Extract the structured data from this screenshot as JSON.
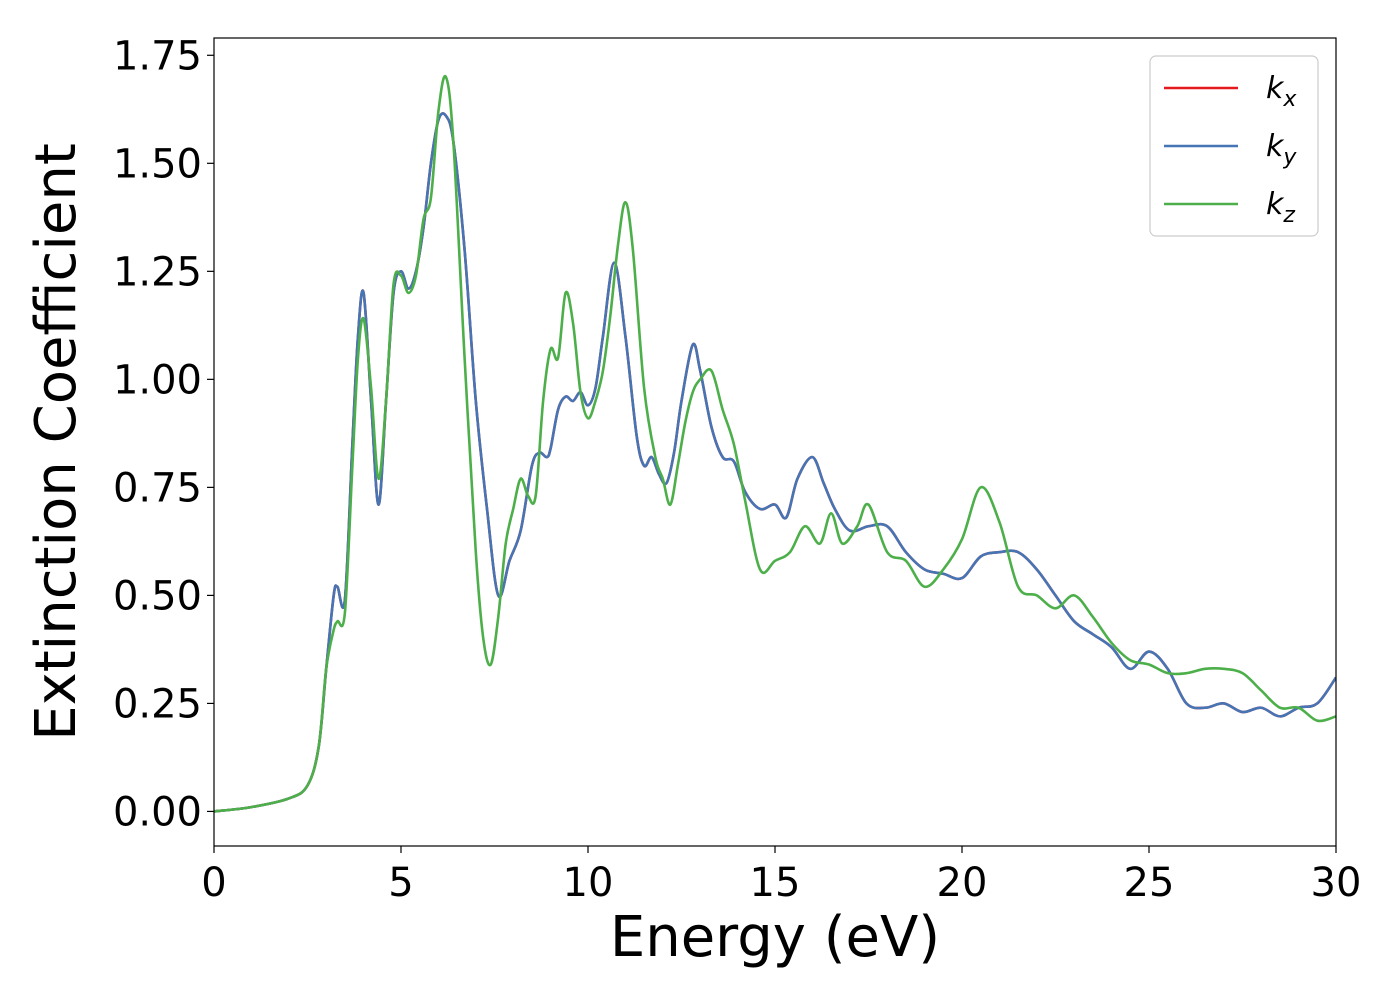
{
  "chart_data": {
    "type": "line",
    "xlabel": "Energy (eV)",
    "ylabel": "Extinction Coefficient",
    "xlim": [
      0,
      30
    ],
    "ylim": [
      -0.08,
      1.79
    ],
    "xticks": [
      0,
      5,
      10,
      15,
      20,
      25,
      30
    ],
    "xtick_labels": [
      "0",
      "5",
      "10",
      "15",
      "20",
      "25",
      "30"
    ],
    "yticks": [
      0,
      0.25,
      0.5,
      0.75,
      1.0,
      1.25,
      1.5,
      1.75
    ],
    "ytick_labels": [
      "0.00",
      "0.25",
      "0.50",
      "0.75",
      "1.00",
      "1.25",
      "1.50",
      "1.75"
    ],
    "grid": false,
    "legend_position": "top-right",
    "series": [
      {
        "name": "k",
        "subscript": "x",
        "color": "#e41a1c",
        "x": [
          0,
          1,
          2,
          2.5,
          2.8,
          3.0,
          3.2,
          3.3,
          3.5,
          3.7,
          3.85,
          4.0,
          4.2,
          4.4,
          4.6,
          4.8,
          5.0,
          5.2,
          5.4,
          5.6,
          5.8,
          6.0,
          6.2,
          6.4,
          6.7,
          7.0,
          7.3,
          7.6,
          7.9,
          8.2,
          8.5,
          8.7,
          8.9,
          9.0,
          9.2,
          9.4,
          9.6,
          9.8,
          10.0,
          10.2,
          10.4,
          10.7,
          11.0,
          11.3,
          11.5,
          11.7,
          11.9,
          12.1,
          12.3,
          12.5,
          12.8,
          13.0,
          13.3,
          13.6,
          13.9,
          14.2,
          14.6,
          15.0,
          15.3,
          15.6,
          16.0,
          16.3,
          16.6,
          17.0,
          17.5,
          18.0,
          18.5,
          19.0,
          19.5,
          20.0,
          20.5,
          21.0,
          21.5,
          22.0,
          22.5,
          23.0,
          23.5,
          24.0,
          24.5,
          25.0,
          25.5,
          26.0,
          26.5,
          27.0,
          27.5,
          28.0,
          28.5,
          29.0,
          29.5,
          30.0
        ],
        "y": [
          0.0,
          0.01,
          0.03,
          0.06,
          0.15,
          0.33,
          0.5,
          0.52,
          0.49,
          0.85,
          1.1,
          1.2,
          0.95,
          0.71,
          0.95,
          1.2,
          1.25,
          1.21,
          1.25,
          1.35,
          1.5,
          1.6,
          1.61,
          1.55,
          1.3,
          0.95,
          0.7,
          0.5,
          0.58,
          0.65,
          0.8,
          0.83,
          0.82,
          0.84,
          0.93,
          0.96,
          0.95,
          0.97,
          0.94,
          0.98,
          1.1,
          1.27,
          1.1,
          0.87,
          0.8,
          0.82,
          0.78,
          0.76,
          0.83,
          0.95,
          1.08,
          1.02,
          0.89,
          0.82,
          0.81,
          0.74,
          0.7,
          0.71,
          0.68,
          0.77,
          0.82,
          0.76,
          0.7,
          0.65,
          0.66,
          0.66,
          0.6,
          0.56,
          0.55,
          0.54,
          0.59,
          0.6,
          0.6,
          0.56,
          0.5,
          0.44,
          0.41,
          0.38,
          0.33,
          0.37,
          0.33,
          0.25,
          0.24,
          0.25,
          0.23,
          0.24,
          0.22,
          0.24,
          0.25,
          0.31
        ]
      },
      {
        "name": "k",
        "subscript": "y",
        "color": "#4575b4",
        "x": [
          0,
          1,
          2,
          2.5,
          2.8,
          3.0,
          3.2,
          3.3,
          3.5,
          3.7,
          3.85,
          4.0,
          4.2,
          4.4,
          4.6,
          4.8,
          5.0,
          5.2,
          5.4,
          5.6,
          5.8,
          6.0,
          6.2,
          6.4,
          6.7,
          7.0,
          7.3,
          7.6,
          7.9,
          8.2,
          8.5,
          8.7,
          8.9,
          9.0,
          9.2,
          9.4,
          9.6,
          9.8,
          10.0,
          10.2,
          10.4,
          10.7,
          11.0,
          11.3,
          11.5,
          11.7,
          11.9,
          12.1,
          12.3,
          12.5,
          12.8,
          13.0,
          13.3,
          13.6,
          13.9,
          14.2,
          14.6,
          15.0,
          15.3,
          15.6,
          16.0,
          16.3,
          16.6,
          17.0,
          17.5,
          18.0,
          18.5,
          19.0,
          19.5,
          20.0,
          20.5,
          21.0,
          21.5,
          22.0,
          22.5,
          23.0,
          23.5,
          24.0,
          24.5,
          25.0,
          25.5,
          26.0,
          26.5,
          27.0,
          27.5,
          28.0,
          28.5,
          29.0,
          29.5,
          30.0
        ],
        "y": [
          0.0,
          0.01,
          0.03,
          0.06,
          0.15,
          0.33,
          0.5,
          0.52,
          0.49,
          0.85,
          1.1,
          1.2,
          0.95,
          0.71,
          0.95,
          1.2,
          1.25,
          1.21,
          1.25,
          1.35,
          1.5,
          1.6,
          1.61,
          1.55,
          1.3,
          0.95,
          0.7,
          0.5,
          0.58,
          0.65,
          0.8,
          0.83,
          0.82,
          0.84,
          0.93,
          0.96,
          0.95,
          0.97,
          0.94,
          0.98,
          1.1,
          1.27,
          1.1,
          0.87,
          0.8,
          0.82,
          0.78,
          0.76,
          0.83,
          0.95,
          1.08,
          1.02,
          0.89,
          0.82,
          0.81,
          0.74,
          0.7,
          0.71,
          0.68,
          0.77,
          0.82,
          0.76,
          0.7,
          0.65,
          0.66,
          0.66,
          0.6,
          0.56,
          0.55,
          0.54,
          0.59,
          0.6,
          0.6,
          0.56,
          0.5,
          0.44,
          0.41,
          0.38,
          0.33,
          0.37,
          0.33,
          0.25,
          0.24,
          0.25,
          0.23,
          0.24,
          0.22,
          0.24,
          0.25,
          0.31
        ]
      },
      {
        "name": "k",
        "subscript": "z",
        "color": "#4daf4a",
        "x": [
          0,
          1,
          2,
          2.5,
          2.8,
          3.0,
          3.2,
          3.3,
          3.5,
          3.7,
          3.85,
          4.0,
          4.2,
          4.4,
          4.6,
          4.8,
          5.0,
          5.2,
          5.4,
          5.6,
          5.8,
          6.0,
          6.2,
          6.4,
          6.7,
          7.0,
          7.2,
          7.4,
          7.6,
          7.8,
          8.0,
          8.2,
          8.4,
          8.6,
          8.8,
          9.0,
          9.2,
          9.4,
          9.6,
          9.8,
          10.0,
          10.2,
          10.4,
          10.6,
          10.8,
          11.0,
          11.2,
          11.5,
          11.8,
          12.0,
          12.2,
          12.4,
          12.6,
          12.8,
          13.0,
          13.3,
          13.6,
          13.9,
          14.2,
          14.6,
          15.0,
          15.4,
          15.8,
          16.2,
          16.5,
          16.8,
          17.2,
          17.5,
          18.0,
          18.5,
          19.0,
          19.5,
          20.0,
          20.5,
          21.0,
          21.5,
          22.0,
          22.5,
          23.0,
          23.5,
          24.0,
          24.5,
          25.0,
          25.5,
          26.0,
          26.5,
          27.0,
          27.5,
          28.0,
          28.5,
          29.0,
          29.5,
          30.0
        ],
        "y": [
          0.0,
          0.01,
          0.03,
          0.06,
          0.15,
          0.33,
          0.42,
          0.44,
          0.46,
          0.8,
          1.05,
          1.14,
          0.98,
          0.77,
          0.95,
          1.22,
          1.24,
          1.2,
          1.24,
          1.37,
          1.42,
          1.62,
          1.7,
          1.55,
          1.05,
          0.6,
          0.4,
          0.34,
          0.45,
          0.62,
          0.7,
          0.77,
          0.73,
          0.73,
          0.95,
          1.07,
          1.05,
          1.2,
          1.13,
          0.97,
          0.91,
          0.95,
          1.02,
          1.15,
          1.31,
          1.41,
          1.3,
          0.98,
          0.82,
          0.77,
          0.71,
          0.8,
          0.9,
          0.97,
          1.0,
          1.02,
          0.93,
          0.85,
          0.72,
          0.56,
          0.58,
          0.6,
          0.66,
          0.62,
          0.69,
          0.62,
          0.66,
          0.71,
          0.6,
          0.58,
          0.52,
          0.56,
          0.63,
          0.75,
          0.67,
          0.52,
          0.5,
          0.47,
          0.5,
          0.45,
          0.39,
          0.35,
          0.34,
          0.32,
          0.32,
          0.33,
          0.33,
          0.32,
          0.28,
          0.24,
          0.24,
          0.21,
          0.22
        ]
      }
    ]
  }
}
